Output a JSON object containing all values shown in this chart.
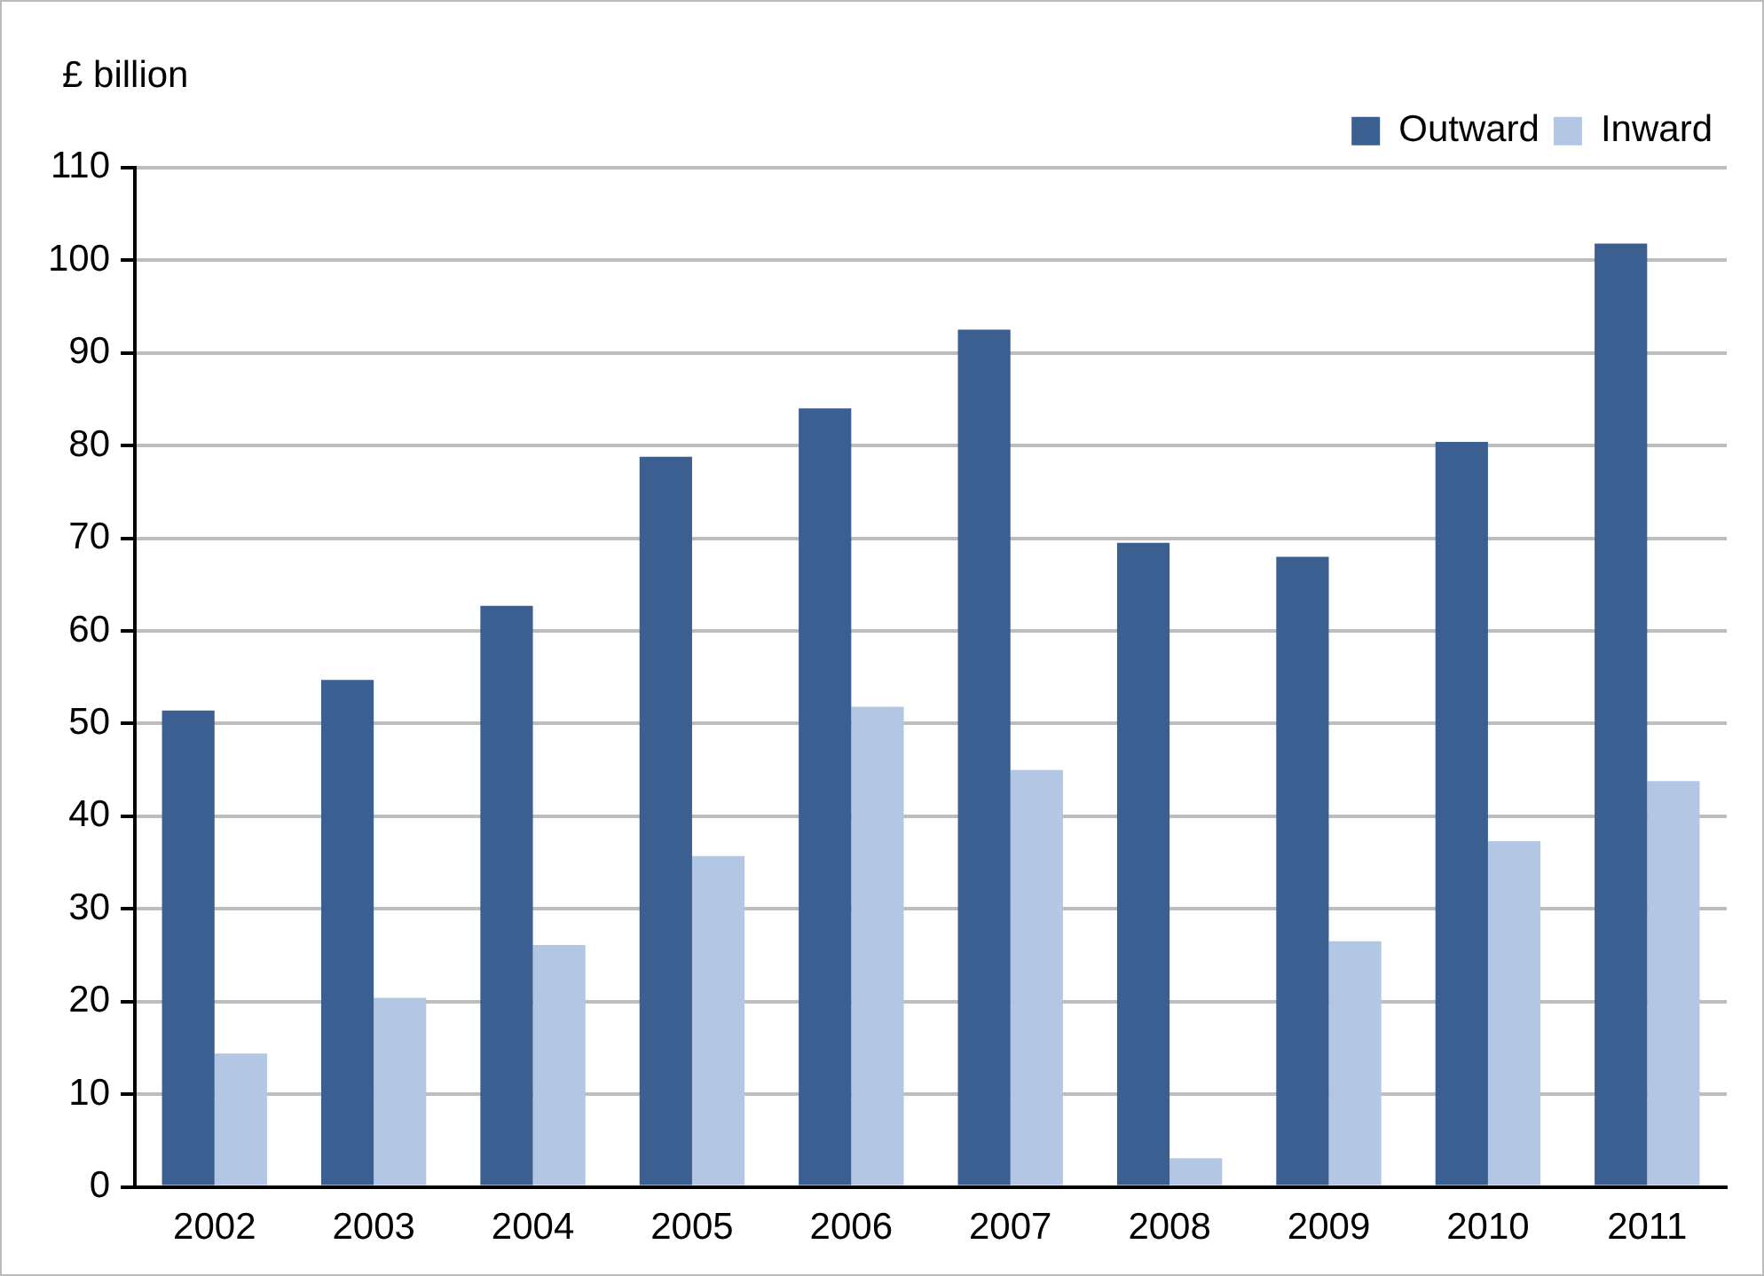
{
  "chart_data": {
    "type": "bar",
    "ylabel": "£ billion",
    "categories": [
      "2002",
      "2003",
      "2004",
      "2005",
      "2006",
      "2007",
      "2008",
      "2009",
      "2010",
      "2011"
    ],
    "series": [
      {
        "name": "Outward",
        "color": "#3b5f91",
        "values": [
          51.4,
          54.7,
          62.7,
          78.8,
          84.0,
          92.5,
          69.5,
          68.0,
          80.4,
          101.8
        ]
      },
      {
        "name": "Inward",
        "color": "#b3c7e5",
        "values": [
          14.4,
          20.4,
          26.1,
          35.7,
          51.8,
          45.0,
          3.1,
          26.5,
          37.3,
          43.8
        ]
      }
    ],
    "ylim": [
      0,
      110
    ],
    "yticks": [
      0,
      10,
      20,
      30,
      40,
      50,
      60,
      70,
      80,
      90,
      100,
      110
    ],
    "grid": "y",
    "legend": "top right"
  }
}
